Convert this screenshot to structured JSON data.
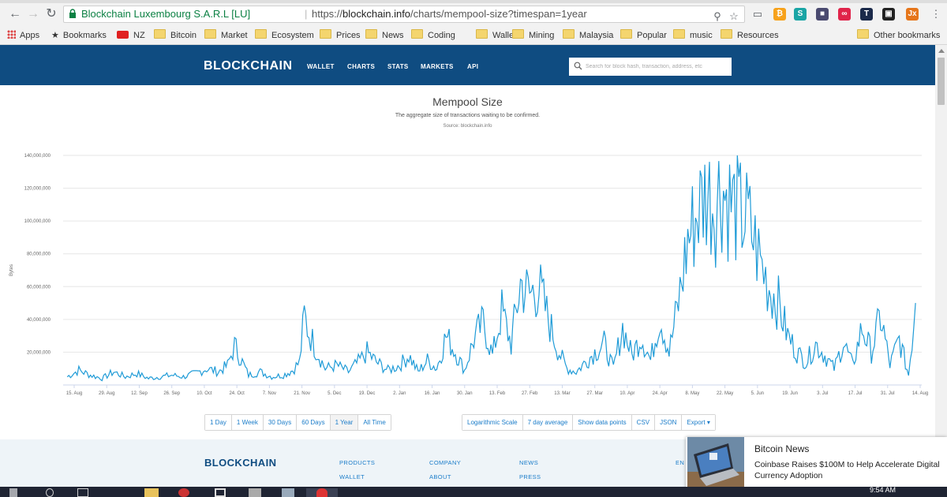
{
  "browser": {
    "site_owner": "Blockchain Luxembourg S.A.R.L [LU]",
    "separator": "|",
    "url_scheme": "https://",
    "url_host": "blockchain.info",
    "url_path": "/charts/mempool-size?timespan=1year",
    "bookmarks": [
      "Apps",
      "Bookmarks",
      "NZ",
      "Bitcoin",
      "Market",
      "Ecosystem",
      "Prices",
      "News",
      "Coding",
      "Wallet",
      "Mining",
      "Malaysia",
      "Popular",
      "music",
      "Resources",
      "Other bookmarks"
    ],
    "extensions": [
      {
        "label": "₿",
        "color": "#f7a21b"
      },
      {
        "label": "S",
        "color": "#1aa5a5"
      },
      {
        "label": "■",
        "color": "#4a4a70"
      },
      {
        "label": "∞",
        "color": "#e0244a"
      },
      {
        "label": "T",
        "color": "#1b2a4a"
      },
      {
        "label": "▣",
        "color": "#222222"
      },
      {
        "label": "Jx",
        "color": "#e6761b"
      }
    ]
  },
  "site": {
    "brand": "BLOCKCHAIN",
    "nav": [
      "WALLET",
      "CHARTS",
      "STATS",
      "MARKETS",
      "API"
    ],
    "search_placeholder": "Search for block hash, transaction, address, etc"
  },
  "chart_header": {
    "title": "Mempool Size",
    "subtitle": "The aggregate size of transactions waiting to be confirmed.",
    "source": "Source: blockchain.info"
  },
  "chart_data": {
    "type": "line",
    "title": "Mempool Size",
    "xlabel": "",
    "ylabel": "Bytes",
    "ylim": [
      0,
      140000000
    ],
    "yticks": [
      0,
      20000000,
      40000000,
      60000000,
      80000000,
      100000000,
      120000000,
      140000000
    ],
    "ytick_labels": [
      "",
      "20,000,000",
      "40,000,000",
      "60,000,000",
      "80,000,000",
      "100,000,000",
      "120,000,000",
      "140,000,000"
    ],
    "xtick_labels": [
      "15. Aug",
      "29. Aug",
      "12. Sep",
      "26. Sep",
      "10. Oct",
      "24. Oct",
      "7. Nov",
      "21. Nov",
      "5. Dec",
      "19. Dec",
      "2. Jan",
      "16. Jan",
      "30. Jan",
      "13. Feb",
      "27. Feb",
      "13. Mar",
      "27. Mar",
      "10. Apr",
      "24. Apr",
      "8. May",
      "22. May",
      "5. Jun",
      "19. Jun",
      "3. Jul",
      "17. Jul",
      "31. Jul",
      "14. Aug"
    ],
    "grid": true,
    "line_color": "#1f9bd7",
    "series": [
      {
        "x": [
          "2016-08-12",
          "2016-08-17",
          "2016-08-22",
          "2016-08-27",
          "2016-09-01",
          "2016-09-06",
          "2016-09-11",
          "2016-09-16",
          "2016-09-21",
          "2016-09-26",
          "2016-10-01",
          "2016-10-06",
          "2016-10-11",
          "2016-10-16",
          "2016-10-20",
          "2016-10-23",
          "2016-10-25",
          "2016-10-29",
          "2016-11-03",
          "2016-11-08",
          "2016-11-13",
          "2016-11-17",
          "2016-11-20",
          "2016-11-22",
          "2016-11-24",
          "2016-11-27",
          "2016-12-01",
          "2016-12-06",
          "2016-12-11",
          "2016-12-16",
          "2016-12-19",
          "2016-12-23",
          "2016-12-28",
          "2017-01-02",
          "2017-01-06",
          "2017-01-10",
          "2017-01-14",
          "2017-01-18",
          "2017-01-22",
          "2017-01-26",
          "2017-01-30",
          "2017-02-03",
          "2017-02-07",
          "2017-02-11",
          "2017-02-15",
          "2017-02-19",
          "2017-02-23",
          "2017-02-27",
          "2017-03-03",
          "2017-03-07",
          "2017-03-11",
          "2017-03-15",
          "2017-03-19",
          "2017-03-23",
          "2017-03-27",
          "2017-03-31",
          "2017-04-04",
          "2017-04-08",
          "2017-04-12",
          "2017-04-16",
          "2017-04-20",
          "2017-04-24",
          "2017-04-28",
          "2017-05-02",
          "2017-05-06",
          "2017-05-10",
          "2017-05-14",
          "2017-05-18",
          "2017-05-20",
          "2017-05-24",
          "2017-05-28",
          "2017-06-01",
          "2017-06-04",
          "2017-06-07",
          "2017-06-10",
          "2017-06-14",
          "2017-06-18",
          "2017-06-22",
          "2017-06-26",
          "2017-06-30",
          "2017-07-04",
          "2017-07-08",
          "2017-07-12",
          "2017-07-16",
          "2017-07-20",
          "2017-07-24",
          "2017-07-28",
          "2017-08-01",
          "2017-08-05",
          "2017-08-09",
          "2017-08-12"
        ],
        "values": [
          5000000,
          9000000,
          6000000,
          4000000,
          8000000,
          5000000,
          7000000,
          4000000,
          5000000,
          6000000,
          5000000,
          7000000,
          10000000,
          8000000,
          12000000,
          24000000,
          18000000,
          6000000,
          8000000,
          5000000,
          6000000,
          9000000,
          14000000,
          42000000,
          32000000,
          22000000,
          10000000,
          12000000,
          8000000,
          15000000,
          20000000,
          14000000,
          9000000,
          12000000,
          18000000,
          8000000,
          15000000,
          10000000,
          30000000,
          20000000,
          9000000,
          28000000,
          38000000,
          18000000,
          45000000,
          25000000,
          62000000,
          55000000,
          60000000,
          40000000,
          22000000,
          10000000,
          8000000,
          14000000,
          20000000,
          25000000,
          10000000,
          35000000,
          18000000,
          30000000,
          15000000,
          42000000,
          20000000,
          50000000,
          88000000,
          105000000,
          118000000,
          110000000,
          122000000,
          112000000,
          105000000,
          100000000,
          86000000,
          72000000,
          60000000,
          50000000,
          30000000,
          20000000,
          14000000,
          25000000,
          18000000,
          10000000,
          26000000,
          12000000,
          35000000,
          20000000,
          42000000,
          12000000,
          28000000,
          6000000,
          50000000
        ]
      }
    ]
  },
  "chart_controls": {
    "timespans": [
      "1 Day",
      "1 Week",
      "30 Days",
      "60 Days",
      "1 Year",
      "All Time"
    ],
    "active_timespan": "1 Year",
    "options": [
      "Logarithmic Scale",
      "7 day average",
      "Show data points",
      "CSV",
      "JSON",
      "Export ▾"
    ]
  },
  "footer": {
    "brand": "BLOCKCHAIN",
    "products": "PRODUCTS",
    "wallet": "WALLET",
    "company": "COMPANY",
    "about": "ABOUT",
    "news": "NEWS",
    "press": "PRESS",
    "en": "EN"
  },
  "notification": {
    "title": "Bitcoin News",
    "body": "Coinbase Raises $100M to Help Accelerate Digital Currency Adoption"
  },
  "taskbar": {
    "clock": "9:54 AM"
  }
}
